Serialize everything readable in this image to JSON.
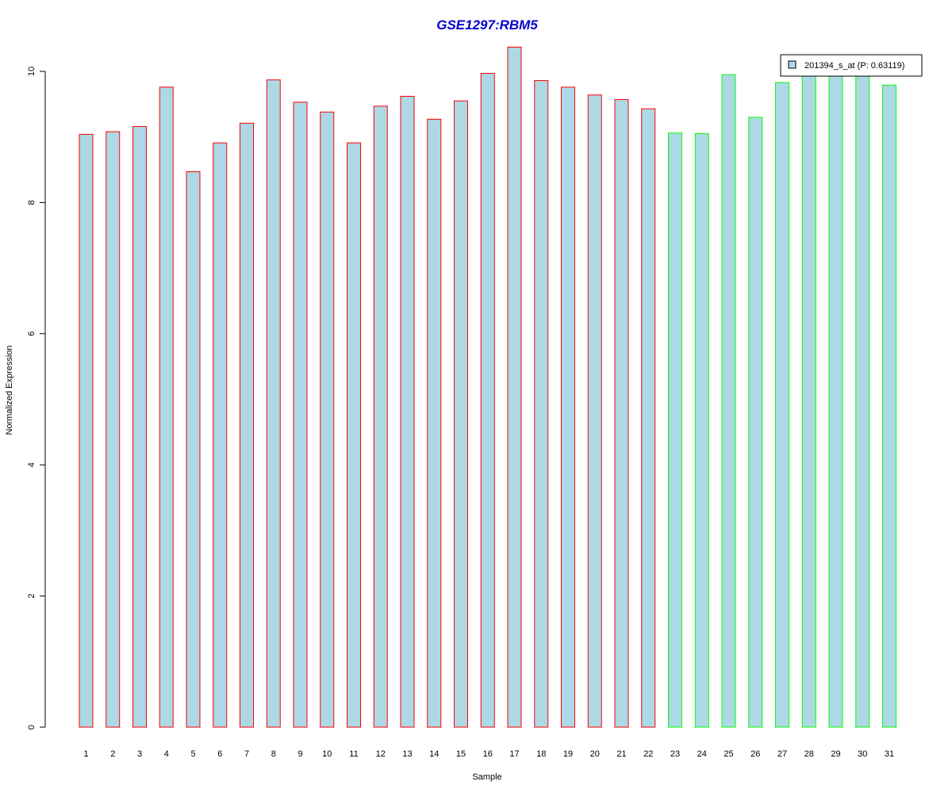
{
  "chart_data": {
    "type": "bar",
    "title": "GSE1297:RBM5",
    "xlabel": "Sample",
    "ylabel": "Normalized Expression",
    "categories": [
      "1",
      "2",
      "3",
      "4",
      "5",
      "6",
      "7",
      "8",
      "9",
      "10",
      "11",
      "12",
      "13",
      "14",
      "15",
      "16",
      "17",
      "18",
      "19",
      "20",
      "21",
      "22",
      "23",
      "24",
      "25",
      "26",
      "27",
      "28",
      "29",
      "30",
      "31"
    ],
    "series": [
      {
        "name": "201394_s_at (P: 0.63119)",
        "values": [
          9.04,
          9.08,
          9.16,
          9.76,
          8.47,
          8.91,
          9.21,
          9.87,
          9.53,
          9.38,
          8.91,
          9.47,
          9.62,
          9.27,
          9.55,
          9.97,
          10.37,
          9.86,
          9.76,
          9.64,
          9.57,
          9.43,
          9.06,
          9.05,
          9.95,
          9.3,
          9.83,
          9.95,
          9.95,
          9.95,
          9.79
        ]
      }
    ],
    "groups": [
      "red",
      "red",
      "red",
      "red",
      "red",
      "red",
      "red",
      "red",
      "red",
      "red",
      "red",
      "red",
      "red",
      "red",
      "red",
      "red",
      "red",
      "red",
      "red",
      "red",
      "red",
      "red",
      "green",
      "green",
      "green",
      "green",
      "green",
      "green",
      "green",
      "green",
      "green"
    ],
    "ylim": [
      0,
      10.37
    ],
    "yticks": [
      "0",
      "2",
      "4",
      "6",
      "8",
      "10"
    ],
    "grid": false,
    "legend_position": "top-right",
    "colors": {
      "bar_fill": "#ADD8E6",
      "border_group1": "#FF0000",
      "border_group2": "#00FF00",
      "title": "#0000CD"
    }
  }
}
